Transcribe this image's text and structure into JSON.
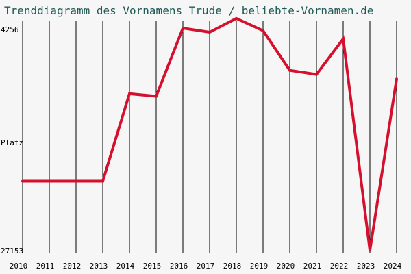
{
  "title": "Trenddiagramm des Vornamens Trude / beliebte-Vornamen.de",
  "chart_data": {
    "type": "line",
    "title": "Trenddiagramm des Vornamens Trude / beliebte-Vornamen.de",
    "ylabel": "Platz",
    "xlabel": "",
    "y_axis": "rank (inverted: smaller rank at top)",
    "y_ticks": [
      "4256",
      "27153"
    ],
    "ylim": [
      4256,
      27153
    ],
    "grid": "vertical lines per year",
    "line_color": "#d4102e",
    "categories": [
      "2010",
      "2011",
      "2012",
      "2013",
      "2014",
      "2015",
      "2016",
      "2017",
      "2018",
      "2019",
      "2020",
      "2021",
      "2022",
      "2023",
      "2024"
    ],
    "series": [
      {
        "values": [
          20050,
          20050,
          20050,
          20050,
          11450,
          11700,
          5000,
          5400,
          4050,
          5250,
          9150,
          9550,
          6050,
          26850,
          10000
        ]
      }
    ]
  }
}
